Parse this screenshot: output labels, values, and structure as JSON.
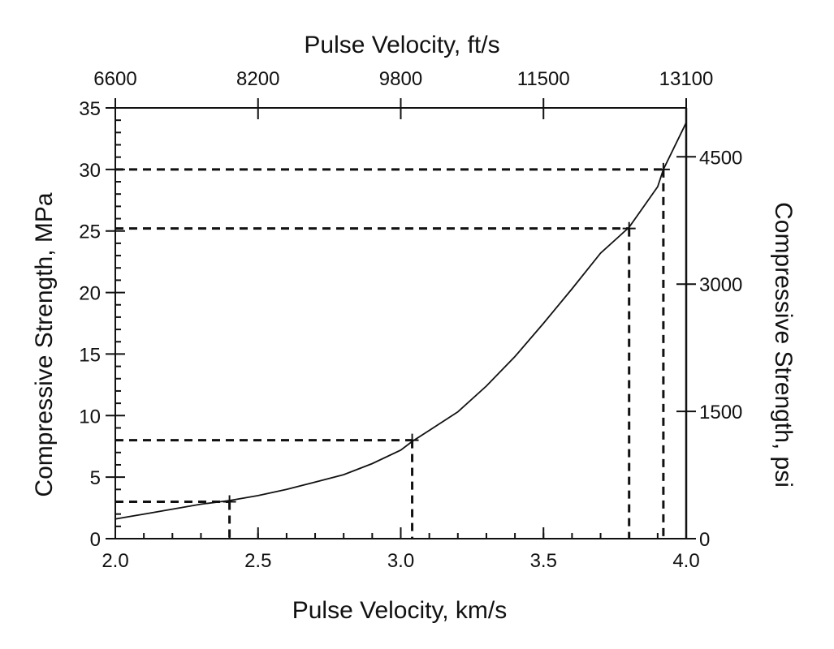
{
  "chart_data": {
    "type": "line",
    "title": "",
    "x": [
      2.0,
      2.1,
      2.2,
      2.3,
      2.4,
      2.5,
      2.6,
      2.7,
      2.8,
      2.9,
      3.0,
      3.04,
      3.1,
      3.2,
      3.3,
      3.4,
      3.5,
      3.6,
      3.7,
      3.8,
      3.9,
      3.92,
      4.0
    ],
    "series": [
      {
        "name": "",
        "values": [
          1.6,
          2.0,
          2.4,
          2.8,
          3.1,
          3.5,
          4.0,
          4.6,
          5.2,
          6.1,
          7.2,
          7.9,
          8.8,
          10.3,
          12.4,
          14.8,
          17.5,
          20.3,
          23.2,
          25.3,
          28.6,
          30.0,
          33.8
        ]
      }
    ],
    "xlabel": "Pulse Velocity, km/s",
    "ylabel": "Compressive Strength, MPa",
    "xlim": [
      2.0,
      4.0
    ],
    "ylim": [
      0,
      35
    ],
    "x_ticks": [
      "2.0",
      "2.5",
      "3.0",
      "3.5",
      "4.0"
    ],
    "y_ticks": [
      "0",
      "5",
      "10",
      "15",
      "20",
      "25",
      "30",
      "35"
    ],
    "x2label": "Pulse Velocity, ft/s",
    "x2_ticks": [
      "6600",
      "8200",
      "9800",
      "11500",
      "13100"
    ],
    "y2label": "Compressive Strength, psi",
    "y2_ticks": [
      "0",
      "1500",
      "3000",
      "4500"
    ],
    "reference_points": [
      {
        "x": 2.4,
        "y": 3.0
      },
      {
        "x": 3.04,
        "y": 8.0
      },
      {
        "x": 3.8,
        "y": 25.2
      },
      {
        "x": 3.92,
        "y": 30.0
      }
    ],
    "grid": false
  }
}
